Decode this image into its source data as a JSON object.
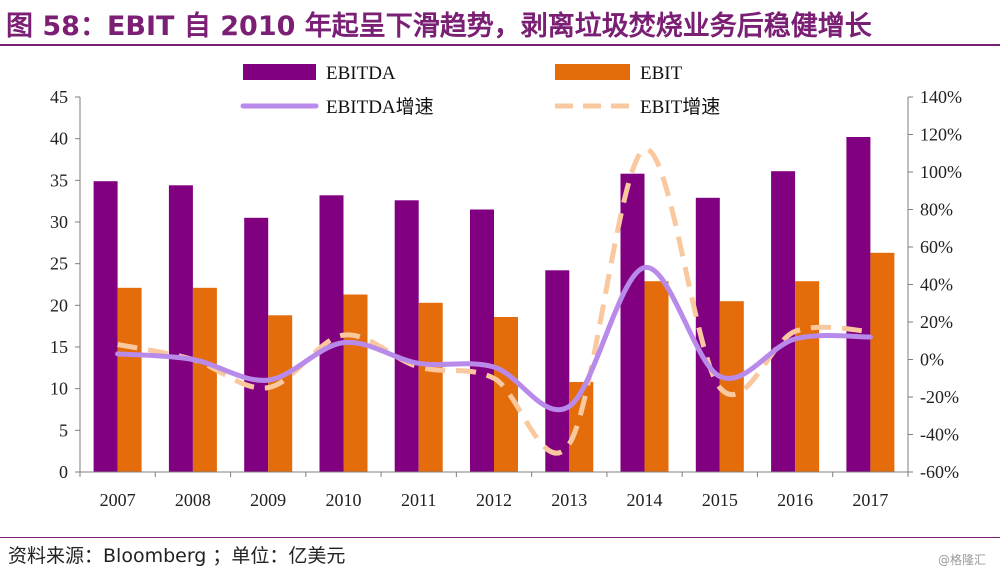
{
  "header": {
    "title": "图 58：EBIT 自 2010 年起呈下滑趋势，剥离垃圾焚烧业务后稳健增长"
  },
  "footer": {
    "source": "资料来源：Bloomberg ；单位：亿美元",
    "watermark": "@格隆汇"
  },
  "colors": {
    "ebitda_bar": "#800080",
    "ebit_bar": "#E46C0A",
    "ebitda_growth_line": "#B88BEA",
    "ebit_growth_line": "#F9C89E",
    "title": "#7A1F74"
  },
  "chart_data": {
    "type": "bar",
    "categories": [
      "2007",
      "2008",
      "2009",
      "2010",
      "2011",
      "2012",
      "2013",
      "2014",
      "2015",
      "2016",
      "2017"
    ],
    "series": [
      {
        "name": "EBITDA",
        "type": "bar",
        "axis": "left",
        "values": [
          34.9,
          34.4,
          30.5,
          33.2,
          32.6,
          31.5,
          24.2,
          35.8,
          32.9,
          36.1,
          40.2
        ]
      },
      {
        "name": "EBIT",
        "type": "bar",
        "axis": "left",
        "values": [
          22.1,
          22.1,
          18.8,
          21.3,
          20.3,
          18.6,
          10.8,
          22.9,
          20.5,
          22.9,
          26.3
        ]
      },
      {
        "name": "EBITDA增速",
        "type": "line",
        "axis": "right",
        "start_index": 0,
        "values": [
          3,
          0,
          -11,
          9,
          -2,
          -4,
          -25,
          49,
          -9,
          11,
          12
        ]
      },
      {
        "name": "EBIT增速",
        "type": "line",
        "axis": "right",
        "style": "dashed",
        "start_index": 0,
        "values": [
          8,
          0,
          -15,
          13,
          -4,
          -10,
          -45,
          112,
          -15,
          15,
          15
        ]
      }
    ],
    "ylim_left": [
      0,
      45
    ],
    "yticks_left": [
      "0",
      "5",
      "10",
      "15",
      "20",
      "25",
      "30",
      "35",
      "40",
      "45"
    ],
    "ylim_right": [
      -60,
      140
    ],
    "yticks_right": [
      "-60%",
      "-40%",
      "-20%",
      "0%",
      "20%",
      "40%",
      "60%",
      "80%",
      "100%",
      "120%",
      "140%"
    ],
    "legend": "top",
    "grid": false
  }
}
